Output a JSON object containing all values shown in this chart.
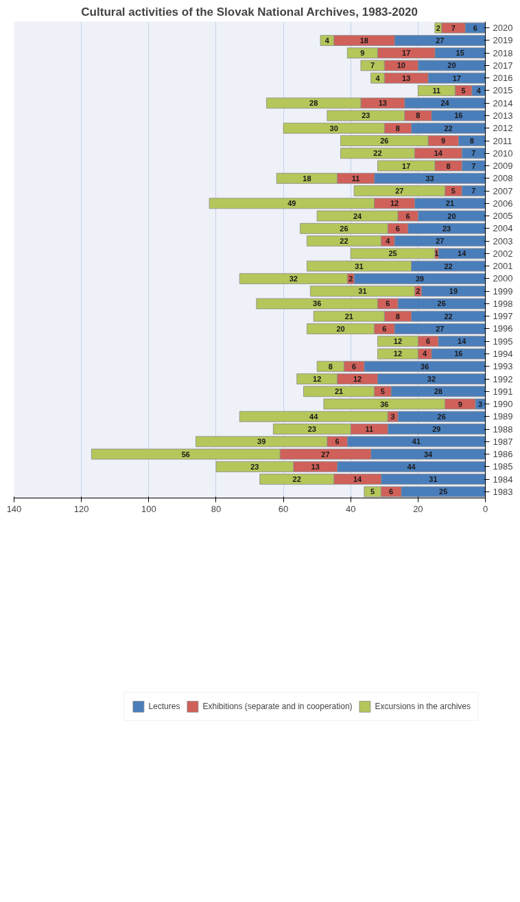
{
  "chart_data": {
    "type": "bar",
    "orientation": "horizontal",
    "stacked": true,
    "title": "Cultural activities of the Slovak National Archives, 1983-2020",
    "categories": [
      "2020",
      "2019",
      "2018",
      "2017",
      "2016",
      "2015",
      "2014",
      "2013",
      "2012",
      "2011",
      "2010",
      "2009",
      "2008",
      "2007",
      "2006",
      "2005",
      "2004",
      "2003",
      "2002",
      "2001",
      "2000",
      "1999",
      "1998",
      "1997",
      "1996",
      "1995",
      "1994",
      "1993",
      "1992",
      "1991",
      "1990",
      "1989",
      "1988",
      "1987",
      "1986",
      "1985",
      "1984",
      "1983"
    ],
    "series": [
      {
        "name": "Lectures",
        "color": "#4a7ebb",
        "values": [
          6,
          27,
          15,
          20,
          17,
          4,
          24,
          16,
          22,
          8,
          7,
          7,
          33,
          7,
          21,
          20,
          23,
          27,
          14,
          22,
          39,
          19,
          26,
          22,
          27,
          14,
          16,
          36,
          32,
          28,
          3,
          26,
          29,
          41,
          34,
          44,
          31,
          25
        ]
      },
      {
        "name": "Exhibitions (separate and in cooperation)",
        "color": "#d0605a",
        "values": [
          7,
          18,
          17,
          10,
          13,
          5,
          13,
          8,
          8,
          9,
          14,
          8,
          11,
          5,
          12,
          6,
          6,
          4,
          1,
          null,
          2,
          2,
          6,
          8,
          6,
          6,
          4,
          6,
          12,
          5,
          9,
          3,
          11,
          6,
          27,
          13,
          14,
          6
        ]
      },
      {
        "name": "Excursions in the archives",
        "color": "#b5c65a",
        "values": [
          2,
          4,
          9,
          7,
          4,
          11,
          28,
          23,
          30,
          26,
          22,
          17,
          18,
          27,
          49,
          24,
          26,
          22,
          25,
          31,
          32,
          31,
          36,
          21,
          20,
          12,
          12,
          8,
          12,
          21,
          36,
          44,
          23,
          39,
          56,
          23,
          22,
          5
        ]
      }
    ],
    "xlim": [
      140,
      0
    ],
    "xticks": [
      0,
      20,
      40,
      60,
      80,
      100,
      120,
      140
    ],
    "grid": "x",
    "data_labels": true,
    "legend": "bottom"
  }
}
